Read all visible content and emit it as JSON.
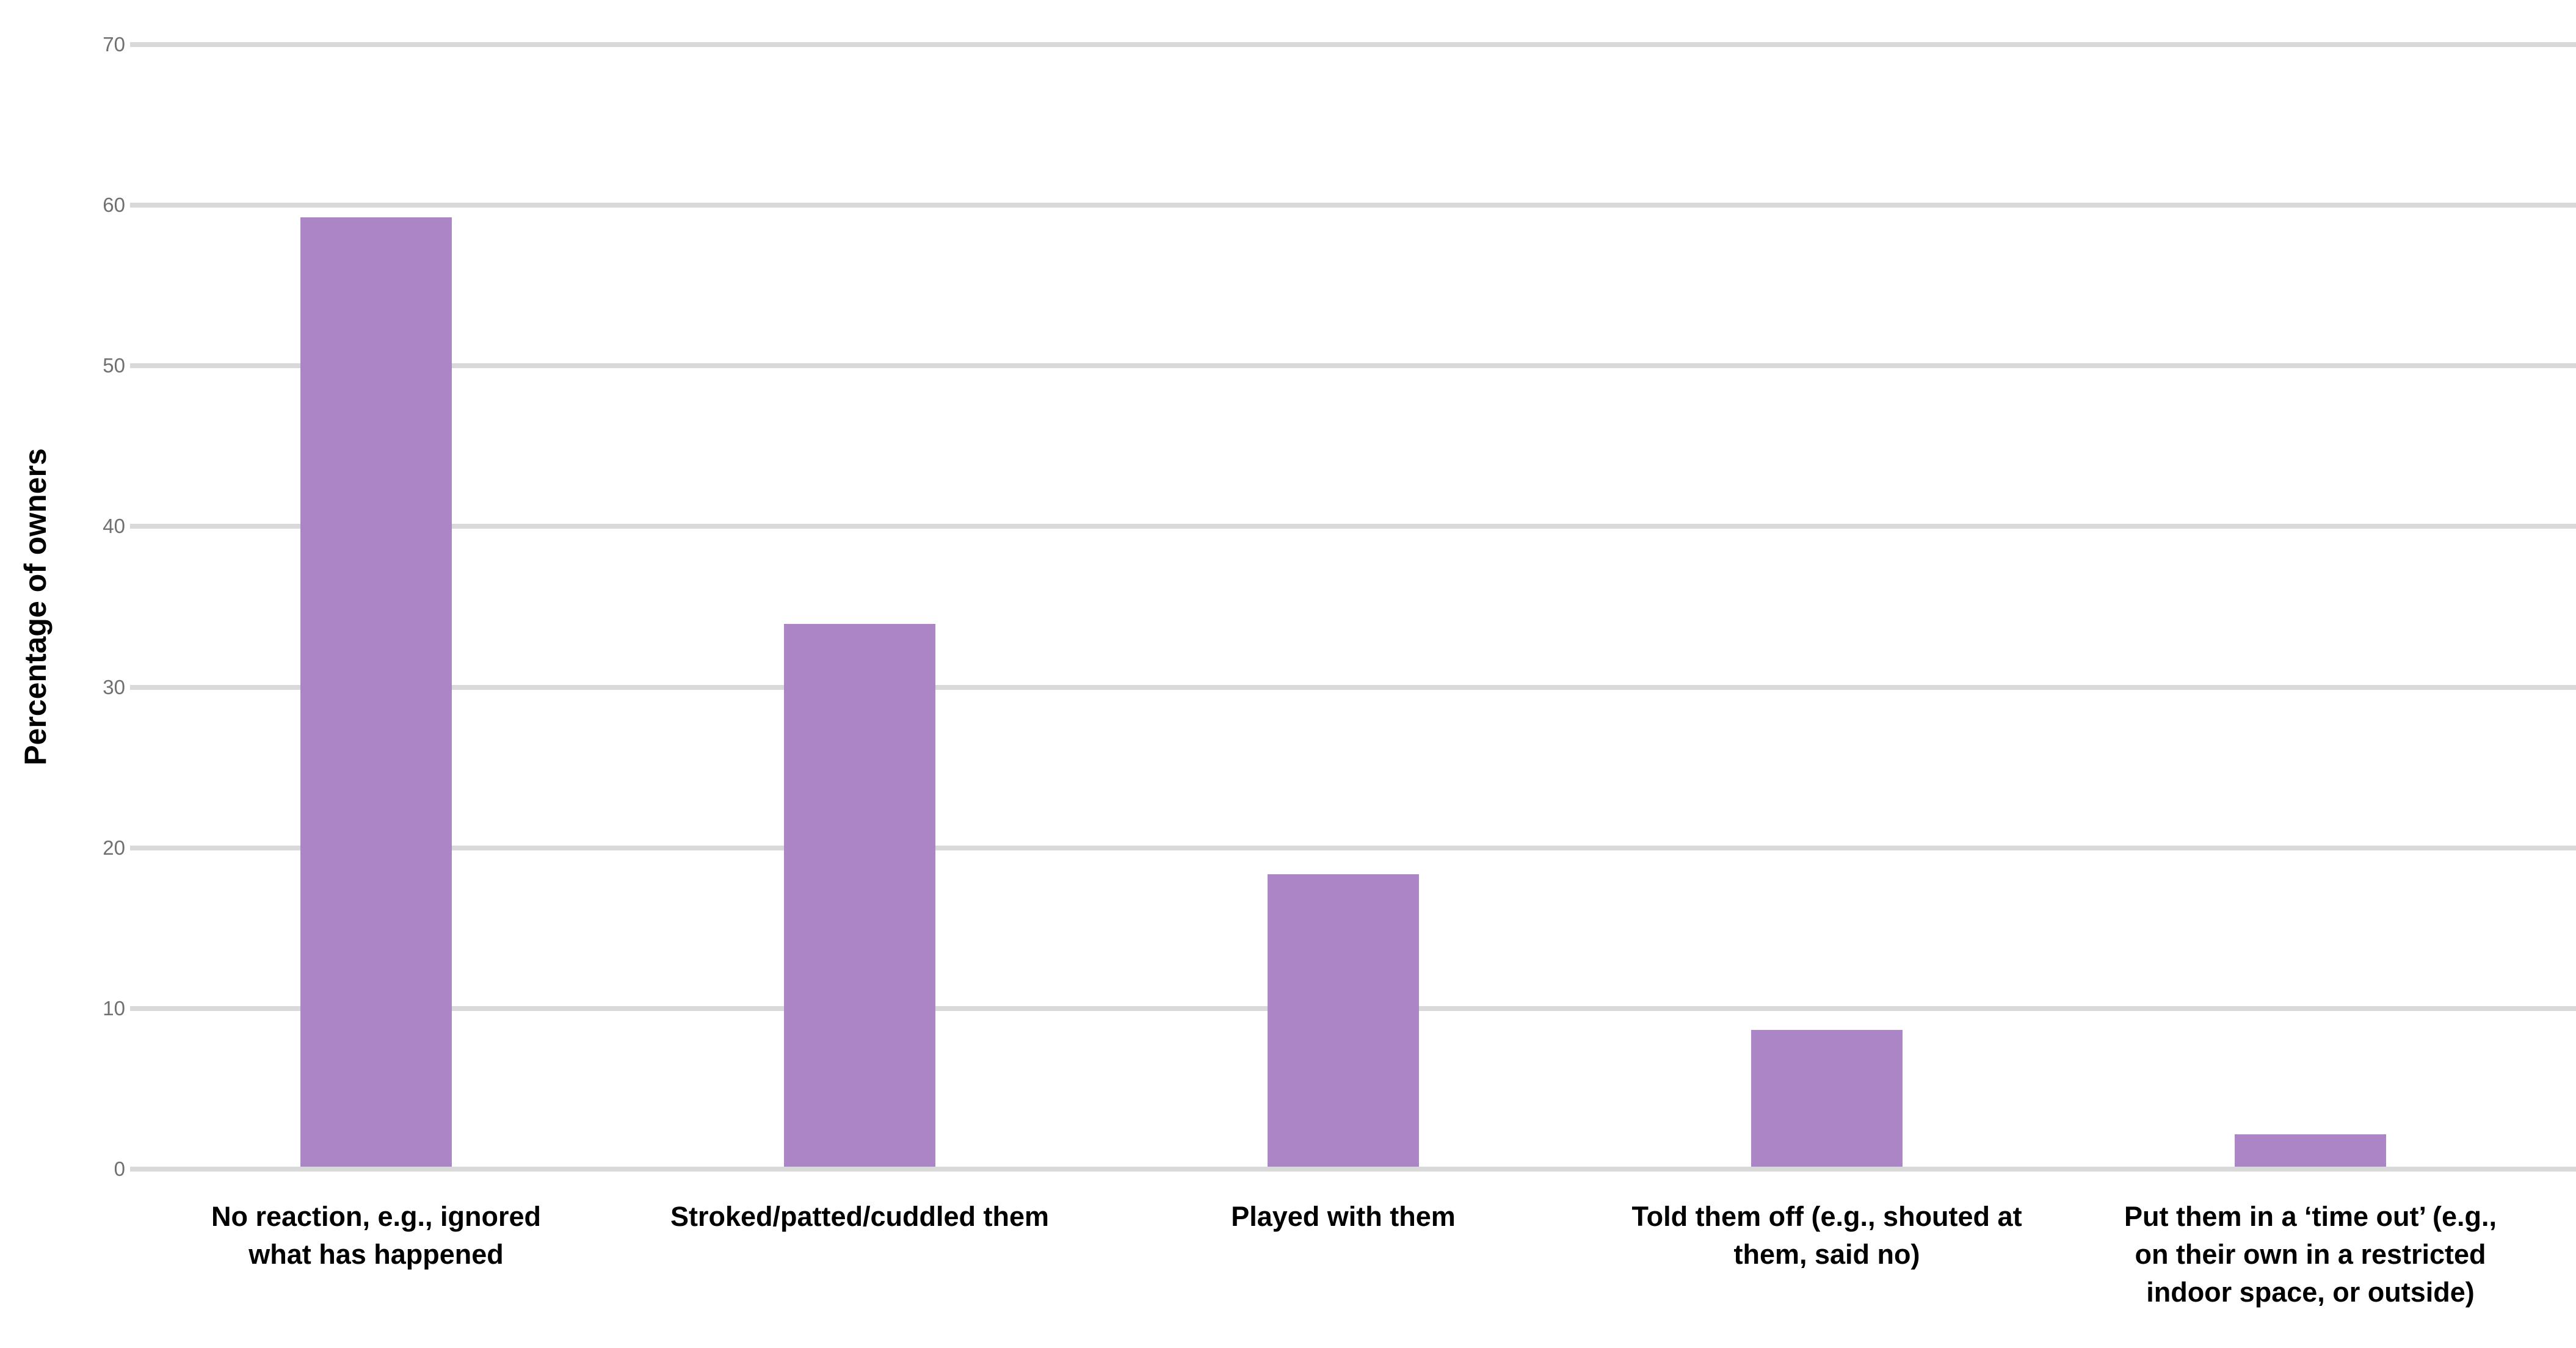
{
  "chart_data": {
    "type": "bar",
    "title": "",
    "xlabel": "",
    "ylabel": "Percentage of owners",
    "ylim": [
      0,
      70
    ],
    "yticks": [
      0,
      10,
      20,
      30,
      40,
      50,
      60,
      70
    ],
    "grid": "horizontal",
    "legend": "none",
    "categories": [
      "No reaction, e.g., ignored what has happened",
      "Stroked/patted/cuddled them",
      "Played with them",
      "Told them off (e.g., shouted at them, said no)",
      "Put them in a ‘time out’ (e.g., on their own in a restricted indoor space, or outside)"
    ],
    "category_lines": [
      [
        "No reaction, e.g., ignored",
        "what has happened"
      ],
      [
        "Stroked/patted/cuddled them"
      ],
      [
        "Played with them"
      ],
      [
        "Told them off (e.g., shouted at",
        "them, said no)"
      ],
      [
        "Put them in a ‘time out’ (e.g.,",
        "on their own in a restricted",
        "indoor space, or outside)"
      ]
    ],
    "values": [
      59.1,
      33.8,
      18.2,
      8.5,
      2.0
    ],
    "bar_color": "#ac85c7",
    "gridline_color": "#d9d9d9",
    "tick_label_color": "#707070",
    "category_label_color": "#000000"
  }
}
